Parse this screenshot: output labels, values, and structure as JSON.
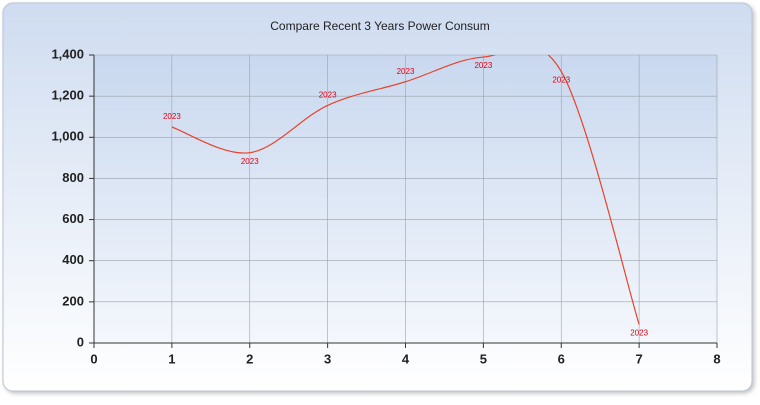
{
  "chart_data": {
    "type": "line",
    "title": "Compare Recent 3 Years Power Consum",
    "x": [
      1,
      2,
      3,
      4,
      5,
      6,
      7
    ],
    "series": [
      {
        "name": "2023",
        "color": "#e8432b",
        "values": [
          1050,
          925,
          1155,
          1270,
          1390,
          1320,
          90
        ]
      }
    ],
    "xlim": [
      0,
      8
    ],
    "xticks": [
      0,
      1,
      2,
      3,
      4,
      5,
      6,
      7,
      8
    ],
    "ylim": [
      0,
      1400
    ],
    "yticks": [
      0,
      200,
      400,
      600,
      800,
      {
        "value": 1000,
        "label": "1,000"
      },
      {
        "value": 1200,
        "label": "1,200"
      },
      {
        "value": 1400,
        "label": "1,400"
      }
    ],
    "grid": true,
    "smooth": true
  }
}
